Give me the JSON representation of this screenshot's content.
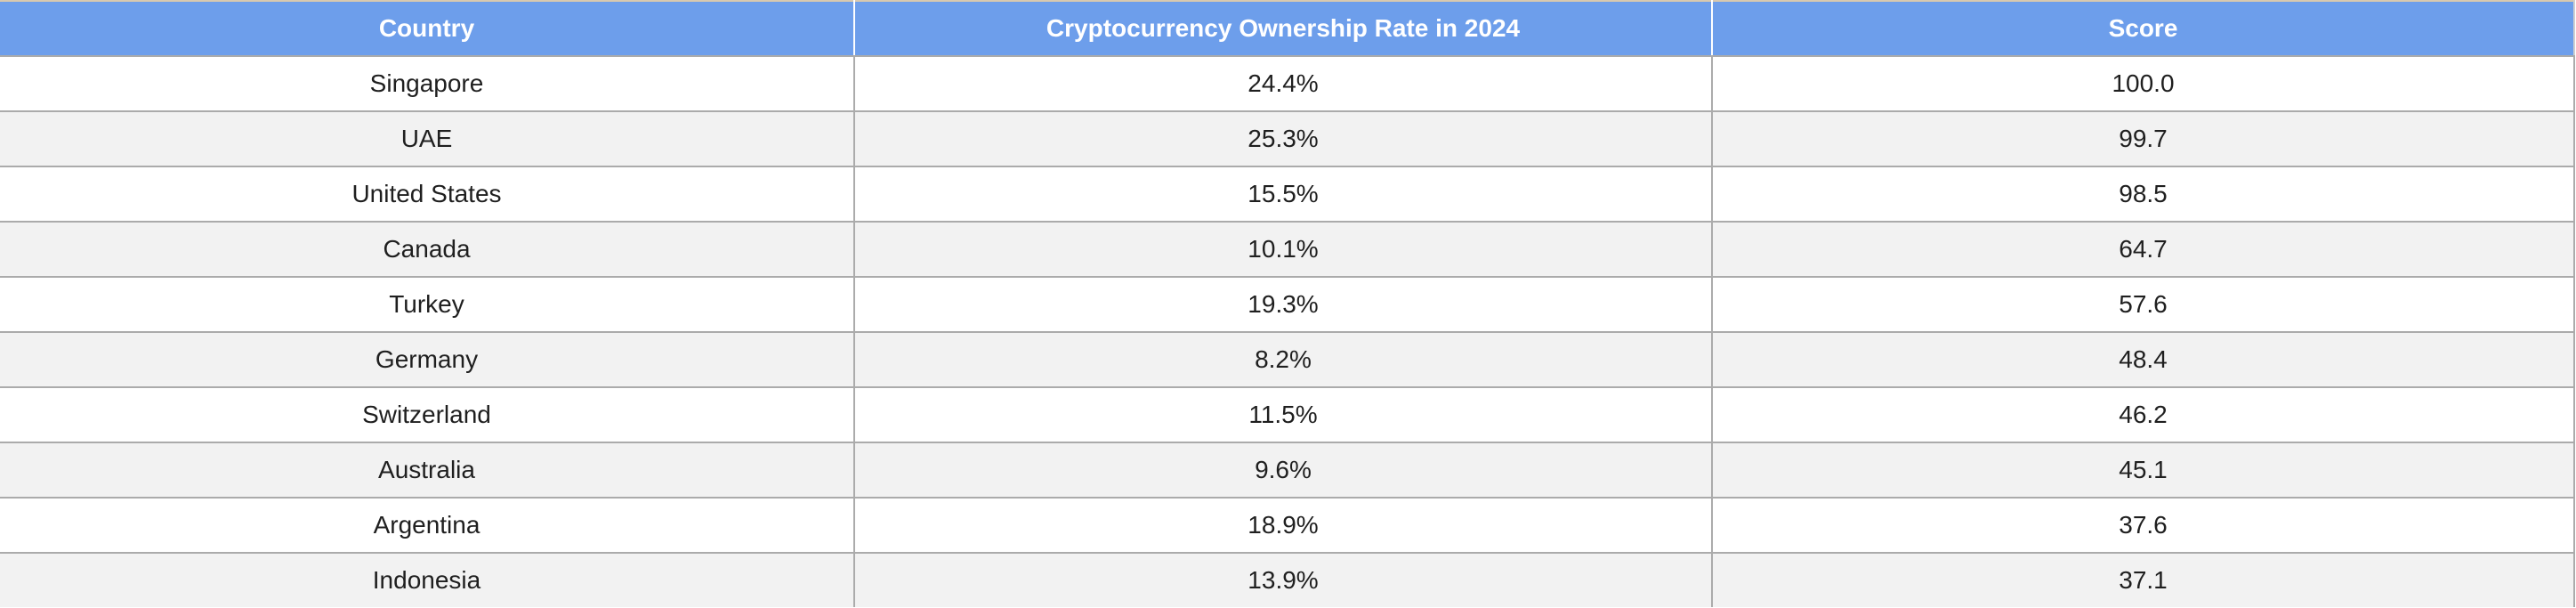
{
  "chart_data": {
    "type": "table",
    "title": "",
    "columns": [
      "Country",
      "Cryptocurrency Ownership Rate in 2024",
      "Score"
    ],
    "rows": [
      [
        "Singapore",
        "24.4%",
        "100.0"
      ],
      [
        "UAE",
        "25.3%",
        "99.7"
      ],
      [
        "United States",
        "15.5%",
        "98.5"
      ],
      [
        "Canada",
        "10.1%",
        "64.7"
      ],
      [
        "Turkey",
        "19.3%",
        "57.6"
      ],
      [
        "Germany",
        "8.2%",
        "48.4"
      ],
      [
        "Switzerland",
        "11.5%",
        "46.2"
      ],
      [
        "Australia",
        "9.6%",
        "45.1"
      ],
      [
        "Argentina",
        "18.9%",
        "37.6"
      ],
      [
        "Indonesia",
        "13.9%",
        "37.1"
      ]
    ],
    "layout_hints": {
      "header_position": "top",
      "zebra_striping": true,
      "text_alignment": "center"
    }
  },
  "colors": {
    "header_background": "#6d9eeb",
    "header_text": "#ffffff",
    "row_background": "#ffffff",
    "row_alt_background": "#f2f2f2",
    "cell_border": "#ababab",
    "header_top_border": "#d8c9af",
    "body_text": "#1f1f1f"
  }
}
